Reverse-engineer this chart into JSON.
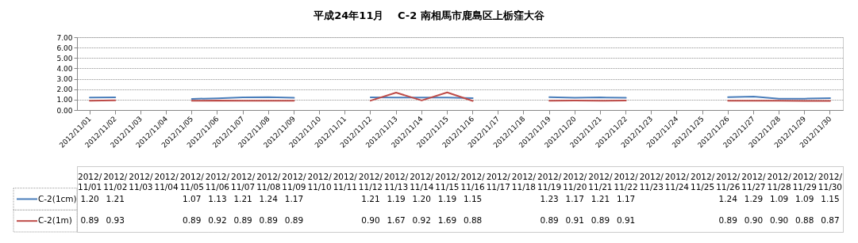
{
  "chart_data": {
    "type": "line",
    "title": "平成24年11月　 C-2 南相馬市鹿島区上栃窪大谷",
    "categories": [
      "2012/11/01",
      "2012/11/02",
      "2012/11/03",
      "2012/11/04",
      "2012/11/05",
      "2012/11/06",
      "2012/11/07",
      "2012/11/08",
      "2012/11/09",
      "2012/11/10",
      "2012/11/11",
      "2012/11/12",
      "2012/11/13",
      "2012/11/14",
      "2012/11/15",
      "2012/11/16",
      "2012/11/17",
      "2012/11/18",
      "2012/11/19",
      "2012/11/20",
      "2012/11/21",
      "2012/11/22",
      "2012/11/23",
      "2012/11/24",
      "2012/11/25",
      "2012/11/26",
      "2012/11/27",
      "2012/11/28",
      "2012/11/29",
      "2012/11/30"
    ],
    "series": [
      {
        "name": "C-2(1cm)",
        "color": "#4a7ebb",
        "values": [
          1.2,
          1.21,
          null,
          null,
          1.07,
          1.13,
          1.21,
          1.24,
          1.17,
          null,
          null,
          1.21,
          1.19,
          1.2,
          1.19,
          1.15,
          null,
          null,
          1.23,
          1.17,
          1.21,
          1.17,
          null,
          null,
          null,
          1.24,
          1.29,
          1.09,
          1.09,
          1.15
        ],
        "value_labels": [
          "1.20",
          "1.21",
          null,
          null,
          "1.07",
          "1.13",
          "1.21",
          "1.24",
          "1.17",
          null,
          null,
          "1.21",
          "1.19",
          "1.20",
          "1.19",
          "1.15",
          null,
          null,
          "1.23",
          "1.17",
          "1.21",
          "1.17",
          null,
          null,
          null,
          "1.24",
          "1.29",
          "1.09",
          "1.09",
          "1.15"
        ]
      },
      {
        "name": "C-2(1m)",
        "color": "#be4b48",
        "values": [
          0.89,
          0.93,
          null,
          null,
          0.89,
          0.92,
          0.89,
          0.89,
          0.89,
          null,
          null,
          0.9,
          1.67,
          0.92,
          1.69,
          0.88,
          null,
          null,
          0.89,
          0.91,
          0.89,
          0.91,
          null,
          null,
          null,
          0.89,
          0.9,
          0.9,
          0.88,
          0.87
        ],
        "value_labels": [
          "0.89",
          "0.93",
          null,
          null,
          "0.89",
          "0.92",
          "0.89",
          "0.89",
          "0.89",
          null,
          null,
          "0.90",
          "1.67",
          "0.92",
          "1.69",
          "0.88",
          null,
          null,
          "0.89",
          "0.91",
          "0.89",
          "0.91",
          null,
          null,
          null,
          "0.89",
          "0.90",
          "0.90",
          "0.88",
          "0.87"
        ]
      }
    ],
    "ylim": [
      0,
      7
    ],
    "yticks": [
      {
        "value": 0,
        "label": "0.00"
      },
      {
        "value": 1,
        "label": "1.00"
      },
      {
        "value": 2,
        "label": "2.00"
      },
      {
        "value": 3,
        "label": "3.00"
      },
      {
        "value": 4,
        "label": "4.00"
      },
      {
        "value": 5,
        "label": "5.00"
      },
      {
        "value": 6,
        "label": "6.00"
      },
      {
        "value": 7,
        "label": "7.00"
      }
    ],
    "grid": "y",
    "legend": "bottom left",
    "line_style": "solid"
  }
}
